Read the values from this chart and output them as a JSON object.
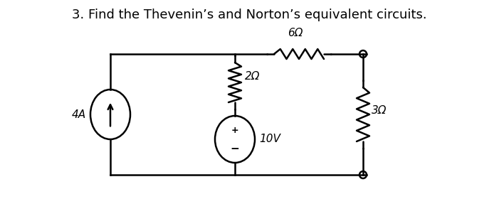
{
  "title": "3. Find the Thevenin’s and Norton’s equivalent circuits.",
  "title_fontsize": 13,
  "bg_color": "#ffffff",
  "line_color": "black",
  "lw": 1.8,
  "label_4A": "4A",
  "label_10V": "10V",
  "label_2ohm": "2Ω",
  "label_6ohm": "6Ω",
  "label_3ohm": "3Ω"
}
